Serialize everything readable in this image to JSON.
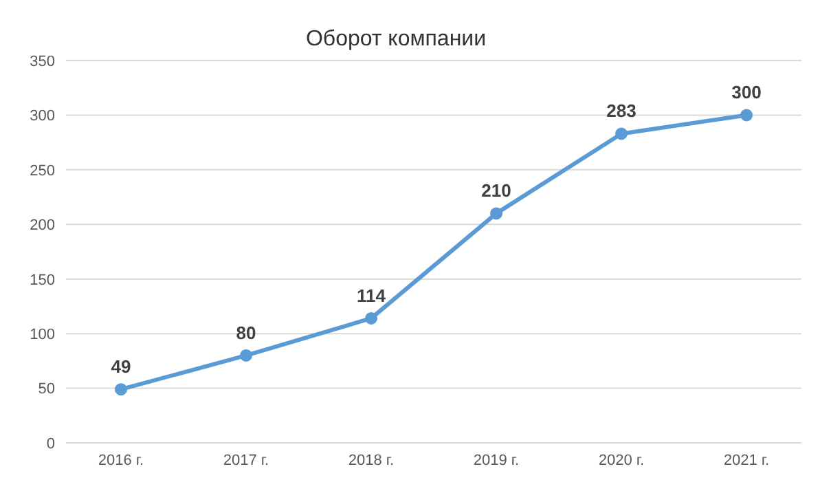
{
  "chart_data": {
    "type": "line",
    "title": "Оборот компании",
    "categories": [
      "2016 г.",
      "2017 г.",
      "2018 г.",
      "2019 г.",
      "2020 г.",
      "2021 г."
    ],
    "series": [
      {
        "color": "#5b9bd5",
        "values": [
          49,
          80,
          114,
          210,
          283,
          300
        ]
      }
    ],
    "ylim": [
      0,
      350
    ],
    "yticks": [
      0,
      50,
      100,
      150,
      200,
      250,
      300,
      350
    ],
    "grid": "y",
    "marker": "circle",
    "line_style": "solid",
    "data_labels": true,
    "legend": false
  }
}
